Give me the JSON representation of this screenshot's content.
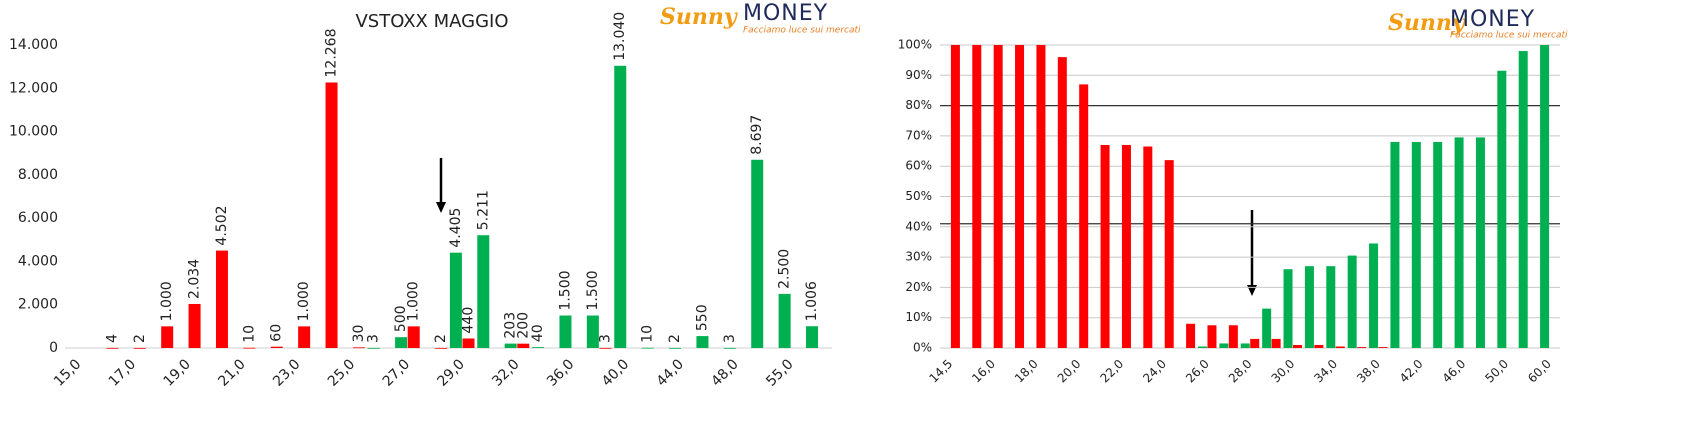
{
  "logo": {
    "brand": "Sunny",
    "name": "MONEY",
    "tagline": "Facciamo luce sui mercati"
  },
  "chart_data": [
    {
      "type": "bar",
      "title": "VSTOXX MAGGIO",
      "categories": [
        "15,0",
        null,
        "17,0",
        null,
        "19,0",
        null,
        "21,0",
        null,
        "23,0",
        null,
        "25,0",
        null,
        "27,0",
        null,
        "29,0",
        null,
        "32,0",
        null,
        "36,0",
        null,
        "40,0",
        null,
        "44,0",
        null,
        "48,0",
        null,
        "55,0",
        null
      ],
      "series": [
        {
          "color": "#00b050",
          "values": [
            null,
            null,
            null,
            null,
            null,
            null,
            null,
            null,
            null,
            null,
            null,
            3,
            500,
            null,
            4405,
            5211,
            203,
            40,
            1500,
            1500,
            13040,
            10,
            2,
            550,
            3,
            8697,
            2500,
            1006
          ],
          "value_labels": [
            null,
            null,
            null,
            null,
            null,
            null,
            null,
            null,
            null,
            null,
            null,
            "3",
            "500",
            null,
            "4.405",
            "5.211",
            "203",
            "40",
            "1.500",
            "1.500",
            "13.040",
            "10",
            "2",
            "550",
            "3",
            "8.697",
            "2.500",
            "1.006"
          ]
        },
        {
          "color": "#ff0000",
          "values": [
            null,
            4,
            2,
            1000,
            2034,
            4502,
            10,
            60,
            1000,
            12268,
            30,
            null,
            1000,
            2,
            440,
            null,
            200,
            null,
            null,
            3,
            null,
            null,
            null,
            null,
            null,
            null,
            null,
            null
          ],
          "value_labels": [
            null,
            "4",
            "2",
            "1.000",
            "2.034",
            "4.502",
            "10",
            "60",
            "1.000",
            "12.268",
            "30",
            null,
            "1.000",
            "2",
            "440",
            null,
            "200",
            null,
            null,
            "3",
            null,
            null,
            null,
            null,
            null,
            null,
            null,
            null
          ]
        }
      ],
      "ylim": [
        0,
        14000
      ],
      "yticks": [
        0,
        {
          "value": 2000,
          "label": "2.000"
        },
        {
          "value": 4000,
          "label": "4.000"
        },
        {
          "value": 6000,
          "label": "6.000"
        },
        {
          "value": 8000,
          "label": "8.000"
        },
        {
          "value": 10000,
          "label": "10.000"
        },
        {
          "value": 12000,
          "label": "12.000"
        },
        {
          "value": 14000,
          "label": "14.000"
        }
      ],
      "grid": false
    },
    {
      "type": "bar",
      "categories": [
        "14,5",
        null,
        "16,0",
        null,
        "18,0",
        null,
        "20,0",
        null,
        "22,0",
        null,
        "24,0",
        null,
        "26,0",
        null,
        "28,0",
        null,
        "30,0",
        null,
        "34,0",
        null,
        "38,0",
        null,
        "42,0",
        null,
        "46,0",
        null,
        "50,0",
        null,
        "60,0"
      ],
      "series": [
        {
          "color": "#00b050",
          "values": [
            null,
            null,
            null,
            null,
            null,
            null,
            null,
            null,
            null,
            null,
            null,
            null,
            0.5,
            1.5,
            1.5,
            13,
            26,
            27,
            27,
            30.5,
            34.5,
            68,
            68,
            68,
            69.5,
            69.5,
            91.5,
            98,
            100
          ]
        },
        {
          "color": "#ff0000",
          "values": [
            100,
            100,
            100,
            100,
            100,
            96,
            87,
            67,
            67,
            66.5,
            62,
            8,
            7.5,
            7.5,
            3,
            3,
            1,
            1,
            0.5,
            0.3,
            0.3,
            null,
            null,
            null,
            null,
            null,
            null,
            null,
            null
          ]
        }
      ],
      "ylim": [
        0,
        100
      ],
      "yticks": [
        {
          "value": 0,
          "label": "0%"
        },
        {
          "value": 10,
          "label": "10%"
        },
        {
          "value": 20,
          "label": "20%"
        },
        {
          "value": 30,
          "label": "30%"
        },
        {
          "value": 40,
          "label": "40%"
        },
        {
          "value": 50,
          "label": "50%"
        },
        {
          "value": 60,
          "label": "60%"
        },
        {
          "value": 70,
          "label": "70%"
        },
        {
          "value": 80,
          "label": "80%"
        },
        {
          "value": 90,
          "label": "90%"
        },
        {
          "value": 100,
          "label": "100%"
        }
      ],
      "reference_lines": [
        80,
        41
      ],
      "grid": true
    }
  ]
}
